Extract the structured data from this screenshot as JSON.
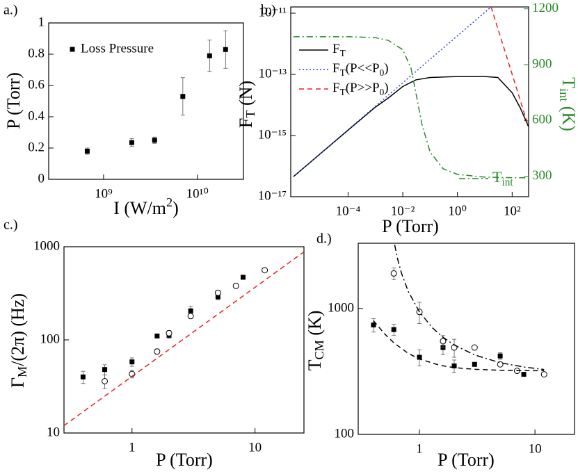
{
  "chart_data": [
    {
      "type": "scatter",
      "panel_label": "a.)",
      "xlabel": [
        {
          "text": "I (W/m"
        },
        {
          "text": "2",
          "sup": true
        },
        {
          "text": ")"
        }
      ],
      "ylabel": "P (Torr)",
      "log_x": true,
      "log_y": false,
      "xlim": [
        260000000,
        31000000000
      ],
      "ylim": [
        0,
        1
      ],
      "xticks": [
        {
          "value": 1000000000,
          "label": "10⁹"
        },
        {
          "value": 10000000000,
          "label": "10¹⁰"
        }
      ],
      "yticks": [
        0,
        0.2,
        0.4,
        0.6,
        0.8,
        1
      ],
      "series": [
        {
          "name": "Loss Pressure",
          "color": "#000000",
          "marker": "square",
          "legend": "upper left",
          "x": [
            670000000,
            2000000000,
            3500000000,
            7000000000,
            13500000000,
            20000000000
          ],
          "values": [
            0.18,
            0.235,
            0.25,
            0.53,
            0.79,
            0.83
          ],
          "errors": [
            0.02,
            0.025,
            0.02,
            0.12,
            0.1,
            0.12
          ]
        }
      ]
    },
    {
      "type": "line",
      "panel_label": "b.)",
      "xlabel": "P (Torr)",
      "ylabel": [
        {
          "text": "F"
        },
        {
          "text": "T",
          "sub": true
        },
        {
          "text": " (N)"
        }
      ],
      "y2label": [
        {
          "text": "T"
        },
        {
          "text": "int",
          "sub": true
        },
        {
          "text": " (K)"
        }
      ],
      "y2_color": "#2a8a2a",
      "log_x": true,
      "log_y": true,
      "xlim": [
        8e-07,
        400
      ],
      "ylim": [
        1e-17,
        1.6e-11
      ],
      "y2lim": [
        190,
        1210
      ],
      "xticks": [
        {
          "value": 0.0001,
          "label": "10⁻⁴"
        },
        {
          "value": 0.01,
          "label": "10⁻²"
        },
        {
          "value": 1,
          "label": "10⁰"
        },
        {
          "value": 100,
          "label": "10²"
        }
      ],
      "yticks": [
        {
          "value": 1e-17,
          "label": "10⁻¹⁷"
        },
        {
          "value": 1e-15,
          "label": "10⁻¹⁵"
        },
        {
          "value": 1e-13,
          "label": "10⁻¹³"
        },
        {
          "value": 1e-11,
          "label": "10⁻¹¹"
        }
      ],
      "y2ticks": [
        300,
        600,
        900,
        1200
      ],
      "series": [
        {
          "name": [
            {
              "text": "F"
            },
            {
              "text": "T",
              "sub": true
            }
          ],
          "color": "#000000",
          "line": "solid",
          "legend": "upper left",
          "x": [
            1e-06,
            1e-05,
            0.0001,
            0.001,
            0.003,
            0.01,
            0.03,
            0.1,
            1,
            10,
            30,
            100,
            200,
            400
          ],
          "values": [
            4.5e-17,
            2.6e-16,
            1.5e-15,
            8.5e-15,
            1.7e-14,
            4e-14,
            6.6e-14,
            7.9e-14,
            8.5e-14,
            8.5e-14,
            7.9e-14,
            2.5e-14,
            7.9e-15,
            1.9e-15
          ]
        },
        {
          "name": [
            {
              "text": "F"
            },
            {
              "text": "T",
              "sub": true
            },
            {
              "text": "(P<<P"
            },
            {
              "text": "0",
              "sub": true
            },
            {
              "text": ")"
            }
          ],
          "color": "#1f3fd0",
          "line": "dot",
          "legend": "upper left",
          "x": [
            1e-06,
            17
          ],
          "values": [
            4.5e-17,
            1.6e-11
          ]
        },
        {
          "name": [
            {
              "text": "F"
            },
            {
              "text": "T",
              "sub": true
            },
            {
              "text": "(P>>P"
            },
            {
              "text": "0",
              "sub": true
            },
            {
              "text": ")"
            }
          ],
          "color": "#e8201e",
          "line": "dash",
          "legend": "upper left",
          "x": [
            17,
            400
          ],
          "values": [
            1.6e-11,
            1.9e-15
          ]
        },
        {
          "name": [
            {
              "text": "T"
            },
            {
              "text": "int",
              "sub": true
            }
          ],
          "color": "#2a8a2a",
          "line": "dashdot",
          "axis": "y2",
          "legend": "lower right",
          "x": [
            1e-06,
            0.0001,
            0.001,
            0.003,
            0.01,
            0.02,
            0.03,
            0.05,
            0.1,
            0.3,
            1,
            10,
            100,
            400
          ],
          "values": [
            1050,
            1050,
            1045,
            1030,
            980,
            880,
            750,
            580,
            430,
            340,
            310,
            295,
            292,
            292
          ]
        }
      ]
    },
    {
      "type": "scatter",
      "panel_label": "c.)",
      "xlabel": "P (Torr)",
      "ylabel": [
        {
          "text": "Γ"
        },
        {
          "text": "M",
          "sub": true
        },
        {
          "text": "/(2π) (Hz)"
        }
      ],
      "log_x": true,
      "log_y": true,
      "xlim": [
        0.28,
        25
      ],
      "ylim": [
        10,
        1000
      ],
      "xticks": [
        1,
        10
      ],
      "yticks": [
        10,
        100,
        1000
      ],
      "series": [
        {
          "color": "#000000",
          "marker": "square",
          "x": [
            0.4,
            0.6,
            1,
            1.6,
            2,
            3,
            5,
            8
          ],
          "values": [
            40,
            48,
            58,
            110,
            112,
            205,
            290,
            470
          ],
          "errors": [
            6,
            6,
            6,
            5,
            8,
            25,
            20,
            15
          ]
        },
        {
          "color": "#000000",
          "marker": "circle",
          "x": [
            0.6,
            1,
            1.6,
            2,
            3,
            5,
            7,
            12
          ],
          "values": [
            36,
            43,
            75,
            118,
            180,
            320,
            380,
            560
          ],
          "errors": [
            6,
            4,
            5,
            8,
            10,
            20,
            15,
            15
          ]
        },
        {
          "color": "#e8201e",
          "line": "dash",
          "x": [
            0.28,
            25
          ],
          "values": [
            12,
            880
          ]
        }
      ]
    },
    {
      "type": "scatter",
      "panel_label": "d.)",
      "xlabel": "P (Torr)",
      "ylabel": [
        {
          "text": "T"
        },
        {
          "text": "CM",
          "sub": true
        },
        {
          "text": " (K)"
        }
      ],
      "log_x": true,
      "log_y": true,
      "xlim": [
        0.295,
        22
      ],
      "ylim": [
        100,
        3300
      ],
      "xticks": [
        1,
        10
      ],
      "yticks": [
        100,
        1000
      ],
      "series": [
        {
          "color": "#000000",
          "marker": "square",
          "x": [
            0.4,
            0.6,
            1,
            1.6,
            2,
            3,
            5,
            8
          ],
          "values": [
            740,
            680,
            410,
            490,
            350,
            360,
            420,
            300
          ],
          "errors": [
            90,
            70,
            60,
            60,
            40,
            0,
            25,
            0
          ]
        },
        {
          "color": "#000000",
          "marker": "circle",
          "x": [
            0.6,
            1,
            1.6,
            2,
            3,
            5,
            7,
            12
          ],
          "values": [
            1900,
            940,
            550,
            490,
            490,
            360,
            320,
            300
          ],
          "errors": [
            200,
            180,
            60,
            80,
            0,
            10,
            10,
            10
          ]
        },
        {
          "color": "#000000",
          "line": "dash",
          "x": [
            0.4,
            0.5,
            0.6,
            0.8,
            1,
            1.5,
            2,
            3,
            5,
            8,
            12
          ],
          "values": [
            800,
            628,
            534,
            440,
            397,
            354,
            339,
            329,
            323,
            321,
            320.5
          ]
        },
        {
          "color": "#000000",
          "line": "dashdot",
          "x": [
            0.61,
            0.65,
            0.7,
            0.8,
            1,
            1.3,
            1.6,
            2,
            3,
            5,
            8,
            12
          ],
          "values": [
            3209,
            2433,
            1900,
            1367,
            940,
            700,
            591,
            513,
            428,
            371,
            343,
            328
          ]
        }
      ]
    }
  ]
}
